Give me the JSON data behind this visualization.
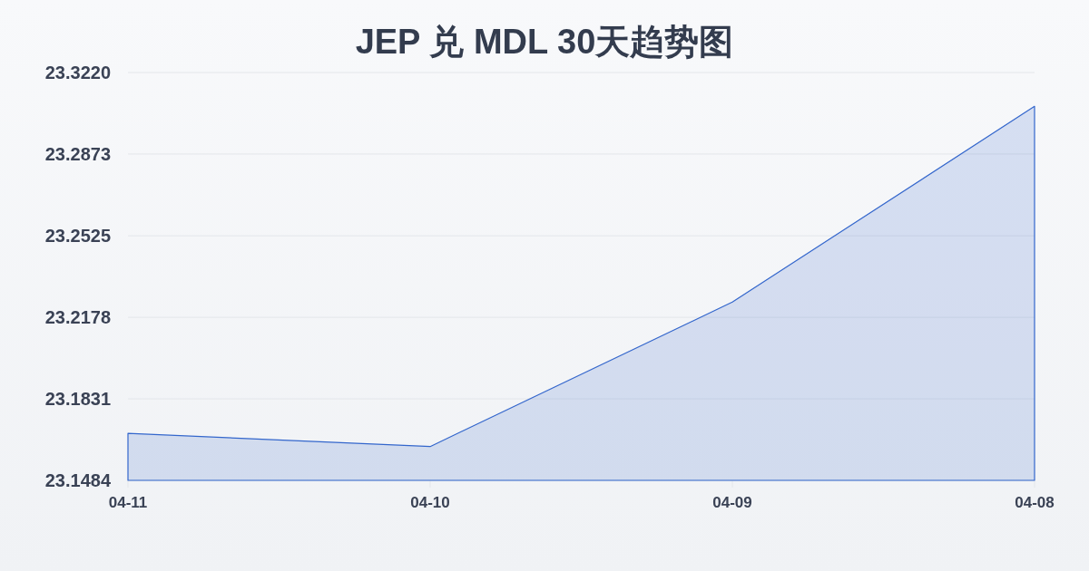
{
  "chart_data": {
    "type": "area",
    "title": "JEP 兑 MDL 30天趋势图",
    "categories": [
      "04-11",
      "04-10",
      "04-09",
      "04-08"
    ],
    "series": [
      {
        "color": "#3366cc",
        "values": [
          23.1684,
          23.1628,
          23.2243,
          23.3076
        ]
      }
    ],
    "ylim": [
      23.1484,
      23.322
    ],
    "yticks": [
      {
        "value": 23.1484,
        "label": "23.1484"
      },
      {
        "value": 23.1831,
        "label": "23.1831"
      },
      {
        "value": 23.2178,
        "label": "23.2178"
      },
      {
        "value": 23.2525,
        "label": "23.2525"
      },
      {
        "value": 23.2873,
        "label": "23.2873"
      },
      {
        "value": 23.322,
        "label": "23.3220"
      }
    ],
    "grid": "y"
  }
}
